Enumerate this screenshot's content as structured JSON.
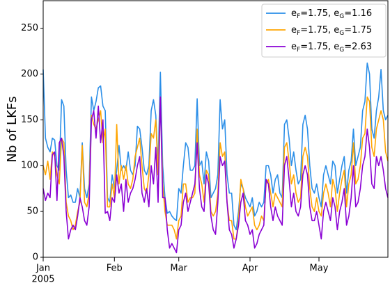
{
  "chart_data": {
    "type": "line",
    "ylabel": "Nb of LKFs",
    "xlim": [
      0,
      150
    ],
    "xticks": [
      {
        "value": 0,
        "label": "Jan"
      },
      {
        "value": 31,
        "label": "Feb"
      },
      {
        "value": 59,
        "label": "Mar"
      },
      {
        "value": 90,
        "label": "Apr"
      },
      {
        "value": 120,
        "label": "May"
      }
    ],
    "xtick_year": "2005",
    "ylim": [
      0,
      280
    ],
    "yticks": [
      0,
      50,
      100,
      150,
      200,
      250
    ],
    "grid": false,
    "legend": "upper right",
    "series": [
      {
        "name": "eF=1.75, eG=1.16",
        "color": "#2a8ee8",
        "values": [
          205,
          130,
          120,
          115,
          130,
          128,
          100,
          95,
          172,
          165,
          95,
          65,
          68,
          60,
          60,
          75,
          65,
          125,
          75,
          65,
          80,
          175,
          160,
          170,
          185,
          187,
          165,
          160,
          65,
          60,
          90,
          75,
          95,
          122,
          95,
          100,
          95,
          115,
          95,
          90,
          100,
          143,
          140,
          120,
          95,
          90,
          100,
          160,
          172,
          155,
          100,
          202,
          100,
          65,
          48,
          50,
          45,
          42,
          40,
          75,
          70,
          100,
          125,
          120,
          95,
          95,
          100,
          173,
          100,
          105,
          80,
          115,
          105,
          65,
          70,
          75,
          90,
          172,
          140,
          150,
          90,
          70,
          70,
          35,
          30,
          50,
          80,
          75,
          65,
          60,
          55,
          65,
          45,
          50,
          60,
          55,
          60,
          100,
          100,
          90,
          70,
          85,
          90,
          70,
          65,
          145,
          150,
          130,
          100,
          115,
          95,
          80,
          85,
          145,
          155,
          140,
          100,
          75,
          70,
          80,
          65,
          55,
          90,
          100,
          90,
          80,
          105,
          100,
          70,
          85,
          100,
          110,
          70,
          95,
          105,
          140,
          100,
          110,
          120,
          160,
          170,
          212,
          200,
          140,
          130,
          160,
          175,
          205,
          160,
          150,
          155
        ]
      },
      {
        "name": "eF=1.75, eG=1.75",
        "color": "#ffa500",
        "values": [
          100,
          90,
          105,
          85,
          115,
          110,
          90,
          80,
          130,
          125,
          60,
          45,
          40,
          30,
          35,
          50,
          60,
          122,
          60,
          55,
          70,
          155,
          145,
          140,
          150,
          160,
          125,
          140,
          55,
          55,
          80,
          65,
          145,
          80,
          100,
          85,
          100,
          80,
          75,
          85,
          110,
          120,
          130,
          100,
          75,
          70,
          90,
          135,
          130,
          150,
          90,
          175,
          80,
          50,
          35,
          35,
          35,
          30,
          20,
          40,
          45,
          80,
          80,
          60,
          65,
          65,
          70,
          140,
          90,
          80,
          60,
          95,
          90,
          50,
          45,
          50,
          70,
          125,
          110,
          115,
          60,
          40,
          40,
          20,
          20,
          40,
          85,
          75,
          55,
          45,
          50,
          55,
          35,
          30,
          35,
          45,
          40,
          80,
          85,
          70,
          55,
          70,
          65,
          60,
          55,
          120,
          125,
          105,
          80,
          90,
          70,
          60,
          65,
          110,
          120,
          110,
          75,
          55,
          50,
          65,
          50,
          45,
          70,
          80,
          70,
          55,
          85,
          75,
          50,
          70,
          85,
          95,
          55,
          80,
          90,
          125,
          80,
          85,
          100,
          130,
          135,
          175,
          170,
          120,
          110,
          140,
          150,
          160,
          150,
          115,
          105
        ]
      },
      {
        "name": "eF=1.75, eG=2.63",
        "color": "#8a00d4",
        "values": [
          75,
          62,
          70,
          65,
          112,
          115,
          62,
          125,
          130,
          110,
          50,
          20,
          30,
          35,
          30,
          45,
          65,
          55,
          40,
          35,
          55,
          150,
          160,
          130,
          165,
          125,
          150,
          48,
          50,
          40,
          65,
          60,
          90,
          70,
          80,
          50,
          85,
          60,
          70,
          75,
          85,
          100,
          110,
          70,
          60,
          75,
          55,
          100,
          80,
          120,
          60,
          175,
          65,
          65,
          30,
          10,
          15,
          10,
          5,
          30,
          35,
          60,
          70,
          50,
          60,
          70,
          80,
          125,
          75,
          55,
          50,
          90,
          80,
          45,
          30,
          25,
          60,
          110,
          100,
          105,
          60,
          30,
          25,
          10,
          20,
          35,
          60,
          70,
          40,
          35,
          25,
          30,
          10,
          15,
          25,
          30,
          35,
          85,
          80,
          55,
          40,
          55,
          45,
          40,
          35,
          100,
          110,
          85,
          55,
          70,
          50,
          45,
          55,
          90,
          100,
          90,
          55,
          40,
          40,
          50,
          35,
          20,
          50,
          60,
          50,
          40,
          65,
          55,
          30,
          50,
          60,
          75,
          35,
          45,
          65,
          100,
          55,
          60,
          75,
          100,
          110,
          140,
          120,
          80,
          75,
          110,
          100,
          110,
          95,
          75,
          65
        ]
      }
    ]
  }
}
